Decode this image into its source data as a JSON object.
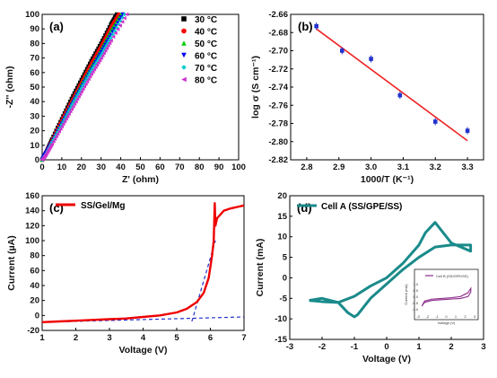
{
  "chart_data": [
    {
      "panel": "(a)",
      "type": "scatter",
      "xlabel": "Z' (ohm)",
      "ylabel": "-Z'' (ohm)",
      "xlim": [
        0,
        100
      ],
      "ylim": [
        0,
        100
      ],
      "xticks": [
        "0",
        "10",
        "20",
        "30",
        "40",
        "50",
        "60",
        "70",
        "80",
        "90",
        "100"
      ],
      "yticks": [
        "0",
        "10",
        "20",
        "30",
        "40",
        "50",
        "60",
        "70",
        "80",
        "90",
        "100"
      ],
      "legend_position": "top-right",
      "series": [
        {
          "name": "30 °C",
          "color": "#000000",
          "marker": "square",
          "x": [
            0,
            2,
            5,
            10,
            15,
            20,
            25,
            30,
            35,
            38
          ],
          "y": [
            0,
            5,
            14,
            28,
            42,
            55,
            68,
            80,
            93,
            100
          ]
        },
        {
          "name": "40 °C",
          "color": "#ff0000",
          "marker": "circle",
          "x": [
            0,
            2,
            5,
            10,
            15,
            20,
            25,
            30,
            35,
            39
          ],
          "y": [
            0,
            5,
            13,
            27,
            40,
            53,
            66,
            78,
            91,
            100
          ]
        },
        {
          "name": "50 °C",
          "color": "#00cc00",
          "marker": "triangle-up",
          "x": [
            0,
            2,
            5,
            10,
            15,
            20,
            25,
            30,
            35,
            40
          ],
          "y": [
            0,
            5,
            13,
            26,
            39,
            52,
            64,
            76,
            89,
            100
          ]
        },
        {
          "name": "60 °C",
          "color": "#0000ff",
          "marker": "triangle-down",
          "x": [
            0,
            2,
            5,
            10,
            15,
            20,
            25,
            30,
            35,
            41
          ],
          "y": [
            0,
            5,
            12,
            25,
            38,
            50,
            62,
            74,
            86,
            100
          ]
        },
        {
          "name": "70 °C",
          "color": "#00cccc",
          "marker": "diamond",
          "x": [
            0,
            2,
            5,
            10,
            15,
            20,
            25,
            30,
            35,
            42
          ],
          "y": [
            0,
            4,
            12,
            24,
            37,
            49,
            61,
            72,
            84,
            100
          ]
        },
        {
          "name": "80 °C",
          "color": "#cc33cc",
          "marker": "triangle-left",
          "x": [
            0,
            2,
            5,
            10,
            15,
            20,
            25,
            30,
            35,
            43
          ],
          "y": [
            0,
            4,
            11,
            23,
            35,
            47,
            59,
            70,
            82,
            100
          ]
        }
      ]
    },
    {
      "panel": "(b)",
      "type": "scatter",
      "xlabel": "1000/T (K⁻¹)",
      "ylabel": "log σ (S cm⁻¹)",
      "xlim": [
        2.75,
        3.35
      ],
      "ylim": [
        -2.82,
        -2.66
      ],
      "xticks": [
        "2.8",
        "2.9",
        "3.0",
        "3.1",
        "3.2",
        "3.3"
      ],
      "yticks": [
        "-2.66",
        "-2.68",
        "-2.70",
        "-2.72",
        "-2.74",
        "-2.76",
        "-2.78",
        "-2.80",
        "-2.82"
      ],
      "series": [
        {
          "name": "",
          "color": "#2233cc",
          "marker": "square",
          "x": [
            2.83,
            2.91,
            3.0,
            3.09,
            3.2,
            3.3
          ],
          "y": [
            -2.673,
            -2.7,
            -2.709,
            -2.749,
            -2.778,
            -2.788
          ]
        },
        {
          "name": "",
          "color": "#ee2222",
          "type": "line",
          "x": [
            2.83,
            3.3
          ],
          "y": [
            -2.676,
            -2.799
          ]
        }
      ]
    },
    {
      "panel": "(c)",
      "type": "line",
      "xlabel": "Voltage (V)",
      "ylabel": "Current (µA)",
      "xlim": [
        1,
        7
      ],
      "ylim": [
        -20,
        160
      ],
      "xticks": [
        "1",
        "2",
        "3",
        "4",
        "5",
        "6",
        "7"
      ],
      "yticks": [
        "-20",
        "0",
        "20",
        "40",
        "60",
        "80",
        "100",
        "120",
        "140",
        "160"
      ],
      "legend_position": "top-left",
      "series": [
        {
          "name": "SS/Gel/Mg",
          "color": "#ee0000",
          "x": [
            1.0,
            1.5,
            2.0,
            2.5,
            3.0,
            3.5,
            4.0,
            4.5,
            5.0,
            5.3,
            5.6,
            5.8,
            5.95,
            6.05,
            6.1,
            6.13,
            6.15,
            6.2,
            6.4,
            6.6,
            6.8,
            7.0
          ],
          "y": [
            -9,
            -8,
            -7,
            -6,
            -5,
            -4,
            -2,
            0,
            4,
            9,
            18,
            30,
            50,
            80,
            100,
            150,
            120,
            130,
            140,
            143,
            145,
            147
          ]
        },
        {
          "name": "",
          "color": "#2233cc",
          "dash": true,
          "x": [
            1.0,
            7.0
          ],
          "y": [
            -9,
            -2
          ]
        },
        {
          "name": "",
          "color": "#2233cc",
          "dash": true,
          "x": [
            5.45,
            6.15
          ],
          "y": [
            -8,
            100
          ]
        }
      ]
    },
    {
      "panel": "(d)",
      "type": "line",
      "xlabel": "Voltage (V)",
      "ylabel": "Current (mA)",
      "xlim": [
        -3,
        3
      ],
      "ylim": [
        -15,
        20
      ],
      "xticks": [
        "-3",
        "-2",
        "-1",
        "0",
        "1",
        "2",
        "3"
      ],
      "yticks": [
        "-15",
        "-10",
        "-5",
        "0",
        "5",
        "10",
        "15",
        "20"
      ],
      "legend_position": "top-left",
      "series": [
        {
          "name": "Cell A (SS/GPE/SS)",
          "color": "#1a8a8a",
          "x": [
            -2.4,
            -2.0,
            -1.5,
            -1.2,
            -1.0,
            -0.9,
            -0.5,
            0.0,
            0.5,
            1.0,
            1.5,
            2.0,
            2.6,
            2.6,
            2.0,
            1.5,
            1.2,
            1.0,
            0.5,
            0.0,
            -0.5,
            -1.0,
            -1.5,
            -2.0,
            -2.4
          ],
          "y": [
            -5.5,
            -5.0,
            -6.0,
            -8.5,
            -9.5,
            -9.0,
            -5.0,
            -1.5,
            2.0,
            5.0,
            7.5,
            8.0,
            8.0,
            6.5,
            8.5,
            13.5,
            11.0,
            8.0,
            3.5,
            0.0,
            -2.0,
            -4.5,
            -6.0,
            -5.8,
            -5.5
          ]
        }
      ],
      "inset": {
        "legend": "Cell B (SS/GPE/SS)",
        "xlabel": "Voltage (V)",
        "ylabel": "Current (mA)",
        "xticks": [
          "-3",
          "-2",
          "-1",
          "0",
          "1",
          "2",
          "3"
        ],
        "yticks": [
          "-1.0",
          "-0.5",
          "0.0",
          "0.5",
          "1.0"
        ],
        "series": [
          {
            "name": "Cell B (SS/GPE/SS)",
            "color": "#8a2c8a",
            "x": [
              -2.6,
              -2.3,
              -1.5,
              -0.5,
              0.5,
              1.5,
              2.3,
              2.6,
              2.6,
              2.3,
              1.5,
              0.5,
              -0.5,
              -1.5,
              -2.3,
              -2.6
            ],
            "y": [
              -0.7,
              -0.4,
              -0.25,
              -0.2,
              -0.15,
              -0.1,
              0.05,
              0.4,
              0.7,
              0.35,
              0.05,
              -0.05,
              -0.1,
              -0.15,
              -0.3,
              -0.7
            ]
          }
        ]
      }
    }
  ]
}
